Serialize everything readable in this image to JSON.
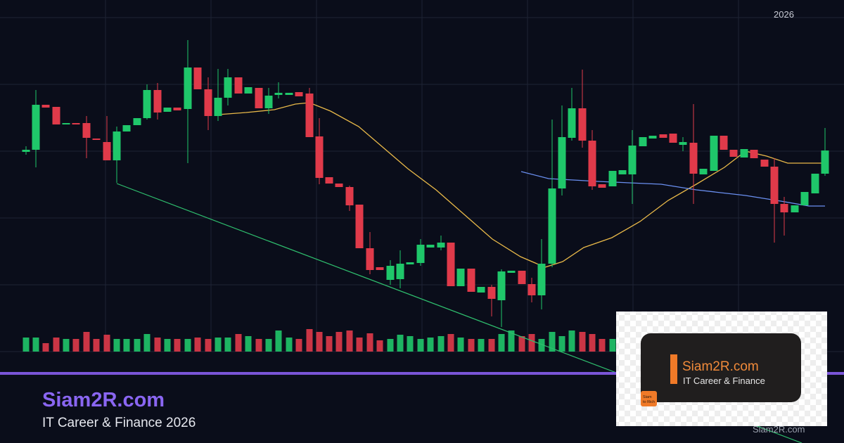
{
  "chart_area": {
    "year_label": "2026"
  },
  "footer": {
    "title": "Siam2R.com",
    "subtitle": "IT Career & Finance 2026"
  },
  "badge": {
    "title": "Siam2R.com",
    "subtitle": "IT Career & Finance",
    "logo_lines": [
      "Siam",
      "to Rich"
    ]
  },
  "watermark": "Siam2R.com"
}
